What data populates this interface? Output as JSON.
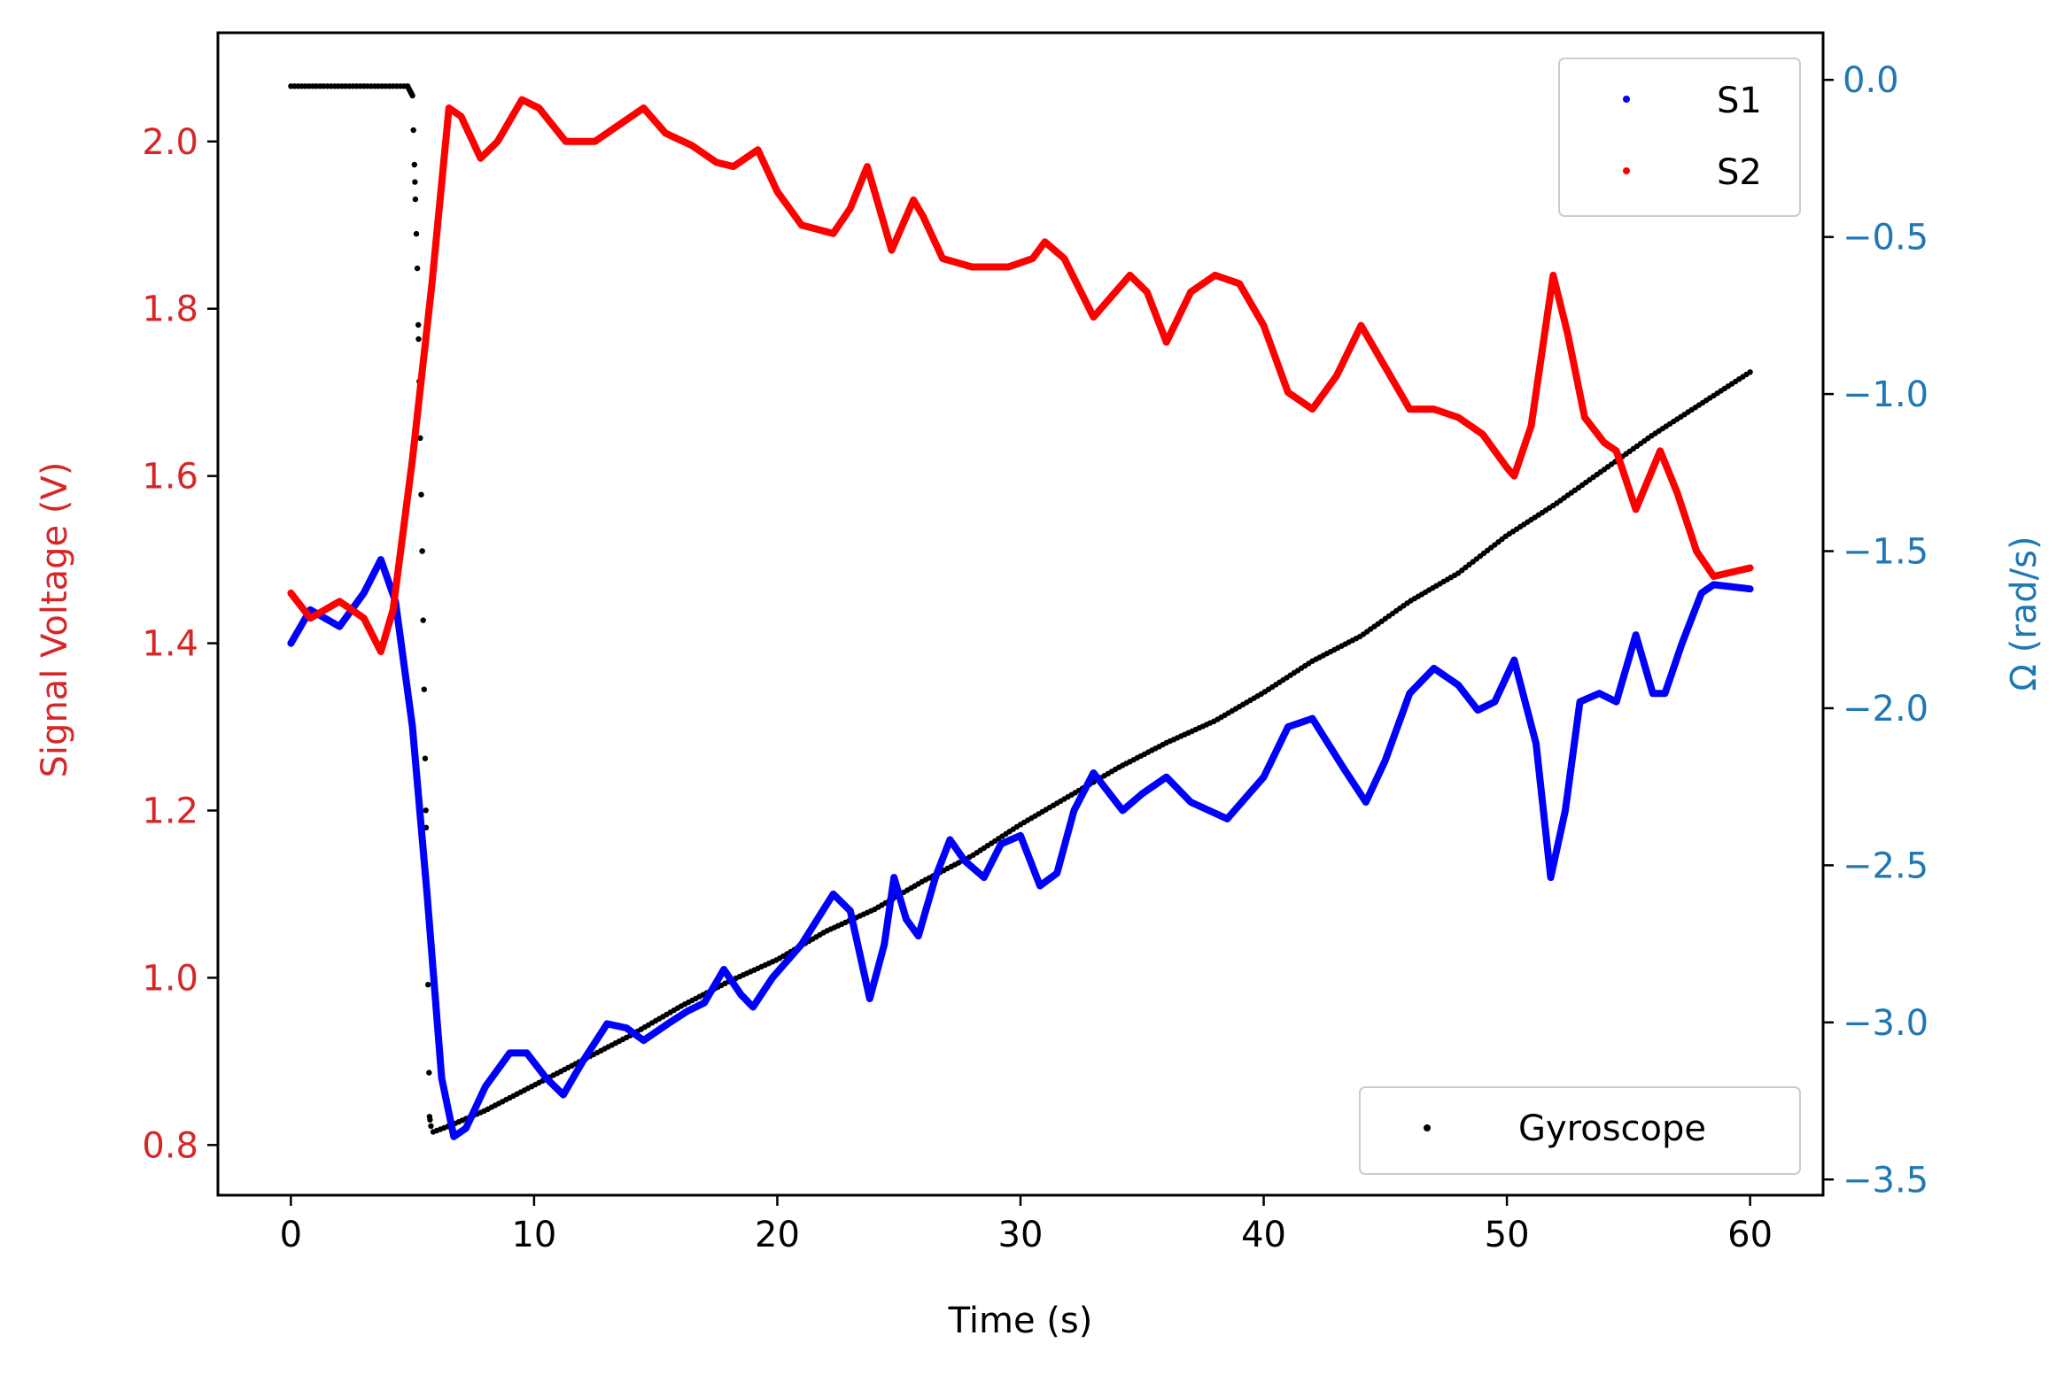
{
  "chart_data": {
    "type": "line",
    "xlabel": "Time (s)",
    "ylabel_left": "Signal Voltage (V)",
    "ylabel_right": "Ω (rad/s)",
    "xlim": [
      -3,
      63
    ],
    "ylim_left": [
      0.74,
      2.13
    ],
    "ylim_right": [
      -3.55,
      0.15
    ],
    "x_ticks": [
      0,
      10,
      20,
      30,
      40,
      50,
      60
    ],
    "y_left_ticks": [
      0.8,
      1.0,
      1.2,
      1.4,
      1.6,
      1.8,
      2.0
    ],
    "y_left_tick_labels": [
      "0.8",
      "1.0",
      "1.2",
      "1.4",
      "1.6",
      "1.8",
      "2.0"
    ],
    "y_right_ticks": [
      -3.5,
      -3.0,
      -2.5,
      -2.0,
      -1.5,
      -1.0,
      -0.5,
      0.0
    ],
    "y_right_tick_labels": [
      "−3.5",
      "−3.0",
      "−2.5",
      "−2.0",
      "−1.5",
      "−1.0",
      "−0.5",
      "0.0"
    ],
    "legend_top": {
      "placement": "upper right",
      "entries": [
        "S1",
        "S2"
      ]
    },
    "legend_bottom": {
      "placement": "lower right",
      "entries": [
        "Gyroscope"
      ]
    },
    "colors": {
      "S1": "#0000ff",
      "S2": "#ff0000",
      "Gyroscope": "#000000",
      "left_axis": "#d62728",
      "right_axis": "#1f77b4"
    },
    "grid": false,
    "series": [
      {
        "name": "S1",
        "axis": "left",
        "marker": "dot",
        "points": [
          [
            0,
            1.4
          ],
          [
            0.8,
            1.44
          ],
          [
            2,
            1.42
          ],
          [
            3,
            1.46
          ],
          [
            3.7,
            1.5
          ],
          [
            4.3,
            1.45
          ],
          [
            5,
            1.3
          ],
          [
            5.6,
            1.1
          ],
          [
            6.2,
            0.88
          ],
          [
            6.7,
            0.81
          ],
          [
            7.2,
            0.82
          ],
          [
            8,
            0.87
          ],
          [
            9,
            0.91
          ],
          [
            9.7,
            0.91
          ],
          [
            10.5,
            0.88
          ],
          [
            11.2,
            0.86
          ],
          [
            12,
            0.9
          ],
          [
            13,
            0.945
          ],
          [
            13.8,
            0.94
          ],
          [
            14.5,
            0.925
          ],
          [
            15.5,
            0.945
          ],
          [
            16.3,
            0.96
          ],
          [
            17,
            0.97
          ],
          [
            17.8,
            1.01
          ],
          [
            18.5,
            0.98
          ],
          [
            19,
            0.965
          ],
          [
            19.8,
            1
          ],
          [
            21,
            1.04
          ],
          [
            22.3,
            1.1
          ],
          [
            23,
            1.08
          ],
          [
            23.8,
            0.975
          ],
          [
            24.4,
            1.04
          ],
          [
            24.8,
            1.12
          ],
          [
            25.3,
            1.07
          ],
          [
            25.8,
            1.05
          ],
          [
            26.5,
            1.12
          ],
          [
            27.1,
            1.165
          ],
          [
            27.7,
            1.14
          ],
          [
            28.5,
            1.12
          ],
          [
            29.2,
            1.16
          ],
          [
            30,
            1.17
          ],
          [
            30.8,
            1.11
          ],
          [
            31.5,
            1.125
          ],
          [
            32.2,
            1.2
          ],
          [
            33,
            1.245
          ],
          [
            34.2,
            1.2
          ],
          [
            35,
            1.22
          ],
          [
            36,
            1.24
          ],
          [
            37,
            1.21
          ],
          [
            38.5,
            1.19
          ],
          [
            40,
            1.24
          ],
          [
            41,
            1.3
          ],
          [
            42,
            1.31
          ],
          [
            43.3,
            1.25
          ],
          [
            44.2,
            1.21
          ],
          [
            45,
            1.26
          ],
          [
            46,
            1.34
          ],
          [
            47,
            1.37
          ],
          [
            48,
            1.35
          ],
          [
            48.8,
            1.32
          ],
          [
            49.5,
            1.33
          ],
          [
            50.3,
            1.38
          ],
          [
            51.2,
            1.28
          ],
          [
            51.8,
            1.12
          ],
          [
            52.4,
            1.2
          ],
          [
            53,
            1.33
          ],
          [
            53.8,
            1.34
          ],
          [
            54.5,
            1.33
          ],
          [
            55.3,
            1.41
          ],
          [
            56,
            1.34
          ],
          [
            56.5,
            1.34
          ],
          [
            57.2,
            1.4
          ],
          [
            58,
            1.46
          ],
          [
            58.5,
            1.47
          ],
          [
            60,
            1.465
          ]
        ]
      },
      {
        "name": "S2",
        "axis": "left",
        "marker": "dot",
        "points": [
          [
            0,
            1.46
          ],
          [
            0.8,
            1.43
          ],
          [
            2,
            1.45
          ],
          [
            3,
            1.43
          ],
          [
            3.7,
            1.39
          ],
          [
            4.2,
            1.44
          ],
          [
            5,
            1.62
          ],
          [
            5.8,
            1.83
          ],
          [
            6.5,
            2.04
          ],
          [
            7,
            2.03
          ],
          [
            7.8,
            1.98
          ],
          [
            8.5,
            2
          ],
          [
            9.5,
            2.05
          ],
          [
            10.2,
            2.04
          ],
          [
            11.3,
            2
          ],
          [
            12.5,
            2
          ],
          [
            13.5,
            2.02
          ],
          [
            14.5,
            2.04
          ],
          [
            15.4,
            2.01
          ],
          [
            16.5,
            1.995
          ],
          [
            17.5,
            1.975
          ],
          [
            18.2,
            1.97
          ],
          [
            19.2,
            1.99
          ],
          [
            20,
            1.94
          ],
          [
            21,
            1.9
          ],
          [
            22.3,
            1.89
          ],
          [
            23,
            1.92
          ],
          [
            23.7,
            1.97
          ],
          [
            24.2,
            1.92
          ],
          [
            24.7,
            1.87
          ],
          [
            25.6,
            1.93
          ],
          [
            26,
            1.91
          ],
          [
            26.8,
            1.86
          ],
          [
            28,
            1.85
          ],
          [
            29.5,
            1.85
          ],
          [
            30.5,
            1.86
          ],
          [
            31,
            1.88
          ],
          [
            31.8,
            1.86
          ],
          [
            33,
            1.79
          ],
          [
            34.5,
            1.84
          ],
          [
            35.2,
            1.82
          ],
          [
            36,
            1.76
          ],
          [
            37,
            1.82
          ],
          [
            38,
            1.84
          ],
          [
            39,
            1.83
          ],
          [
            40,
            1.78
          ],
          [
            41,
            1.7
          ],
          [
            42,
            1.68
          ],
          [
            43,
            1.72
          ],
          [
            44,
            1.78
          ],
          [
            45,
            1.73
          ],
          [
            46,
            1.68
          ],
          [
            47,
            1.68
          ],
          [
            48,
            1.67
          ],
          [
            49,
            1.65
          ],
          [
            50,
            1.61
          ],
          [
            50.3,
            1.6
          ],
          [
            51,
            1.66
          ],
          [
            51.9,
            1.84
          ],
          [
            52.5,
            1.77
          ],
          [
            53.2,
            1.67
          ],
          [
            54,
            1.64
          ],
          [
            54.5,
            1.63
          ],
          [
            55.3,
            1.56
          ],
          [
            56.3,
            1.63
          ],
          [
            57,
            1.58
          ],
          [
            57.8,
            1.51
          ],
          [
            58.5,
            1.48
          ],
          [
            60,
            1.49
          ]
        ]
      },
      {
        "name": "Gyroscope",
        "axis": "right",
        "marker": "dot",
        "points": [
          [
            0,
            -0.02
          ],
          [
            1,
            -0.02
          ],
          [
            2,
            -0.02
          ],
          [
            3,
            -0.02
          ],
          [
            4,
            -0.02
          ],
          [
            4.8,
            -0.02
          ],
          [
            5,
            -0.05
          ],
          [
            5.2,
            -0.6
          ],
          [
            5.4,
            -1.5
          ],
          [
            5.6,
            -2.6
          ],
          [
            5.7,
            -3.3
          ],
          [
            5.8,
            -3.35
          ],
          [
            6.5,
            -3.33
          ],
          [
            8,
            -3.28
          ],
          [
            10,
            -3.2
          ],
          [
            12,
            -3.12
          ],
          [
            14,
            -3.04
          ],
          [
            16,
            -2.95
          ],
          [
            18,
            -2.87
          ],
          [
            20,
            -2.8
          ],
          [
            22,
            -2.71
          ],
          [
            24,
            -2.64
          ],
          [
            26,
            -2.55
          ],
          [
            28,
            -2.47
          ],
          [
            30,
            -2.37
          ],
          [
            32,
            -2.28
          ],
          [
            34,
            -2.19
          ],
          [
            36,
            -2.11
          ],
          [
            38,
            -2.04
          ],
          [
            40,
            -1.95
          ],
          [
            42,
            -1.85
          ],
          [
            44,
            -1.77
          ],
          [
            46,
            -1.66
          ],
          [
            48,
            -1.57
          ],
          [
            50,
            -1.45
          ],
          [
            52,
            -1.35
          ],
          [
            54,
            -1.24
          ],
          [
            56,
            -1.13
          ],
          [
            58,
            -1.03
          ],
          [
            60,
            -0.93
          ]
        ]
      }
    ]
  }
}
